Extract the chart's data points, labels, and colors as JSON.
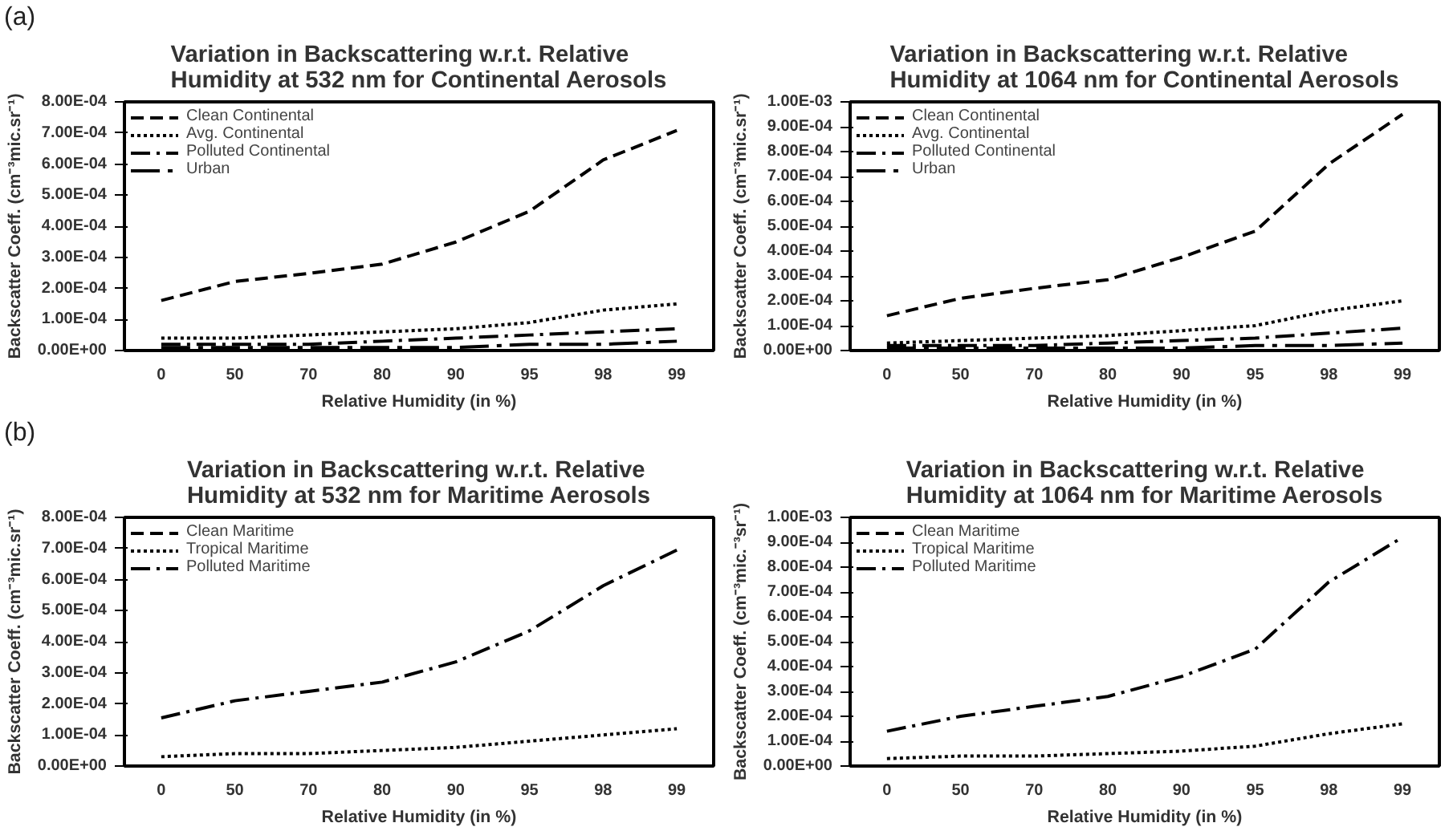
{
  "chart_data": [
    {
      "type": "line",
      "title": "Variation in Backscattering w.r.t. Relative\nHumidity at 532 nm for Continental Aerosols",
      "xlabel": "Relative Humidity (in %)",
      "ylabel": "Backscatter Coeff. (cm⁻³mic.sr⁻¹)",
      "annotations": [
        "(a)"
      ],
      "categories": [
        "0",
        "50",
        "70",
        "80",
        "90",
        "95",
        "98",
        "99"
      ],
      "series": [
        {
          "name": "Clean Continental",
          "color": "#000000",
          "line_style": "dashed",
          "values": [
            0.000161,
            0.000222,
            0.000248,
            0.000278,
            0.000349,
            0.000448,
            0.000613,
            0.000708
          ]
        },
        {
          "name": "Avg. Continental",
          "color": "#000000",
          "line_style": "dotted",
          "values": [
            4e-05,
            4e-05,
            5e-05,
            6e-05,
            7e-05,
            9e-05,
            0.00013,
            0.00015
          ]
        },
        {
          "name": "Polluted Continental",
          "color": "#000000",
          "line_style": "dashdot",
          "values": [
            2e-05,
            2e-05,
            2e-05,
            3e-05,
            4e-05,
            5e-05,
            6e-05,
            7e-05
          ]
        },
        {
          "name": "Urban",
          "color": "#000000",
          "line_style": "longdashdot",
          "values": [
            1e-05,
            1e-05,
            1e-05,
            1e-05,
            1e-05,
            2e-05,
            2e-05,
            3e-05
          ]
        }
      ],
      "ylim": [
        0,
        0.0008
      ],
      "yticks": [
        {
          "value": 0,
          "label": "0.00E+00"
        },
        {
          "value": 0.0001,
          "label": "1.00E-04"
        },
        {
          "value": 0.0002,
          "label": "2.00E-04"
        },
        {
          "value": 0.0003,
          "label": "3.00E-04"
        },
        {
          "value": 0.0004,
          "label": "4.00E-04"
        },
        {
          "value": 0.0005,
          "label": "5.00E-04"
        },
        {
          "value": 0.0006,
          "label": "6.00E-04"
        },
        {
          "value": 0.0007,
          "label": "7.00E-04"
        },
        {
          "value": 0.0008,
          "label": "8.00E-04"
        }
      ],
      "legend": "top left"
    },
    {
      "type": "line",
      "title": "Variation in Backscattering w.r.t. Relative\nHumidity at 1064 nm for Continental Aerosols",
      "xlabel": "Relative Humidity (in %)",
      "ylabel": "Backscatter Coeff. (cm⁻³mic.sr⁻¹)",
      "categories": [
        "0",
        "50",
        "70",
        "80",
        "90",
        "95",
        "98",
        "99"
      ],
      "series": [
        {
          "name": "Clean Continental",
          "color": "#000000",
          "line_style": "dashed",
          "values": [
            0.00014,
            0.00021,
            0.00025,
            0.000285,
            0.000375,
            0.00048,
            0.00075,
            0.00095
          ]
        },
        {
          "name": "Avg. Continental",
          "color": "#000000",
          "line_style": "dotted",
          "values": [
            3e-05,
            4e-05,
            5e-05,
            6e-05,
            8e-05,
            0.0001,
            0.00016,
            0.0002
          ]
        },
        {
          "name": "Polluted Continental",
          "color": "#000000",
          "line_style": "dashdot",
          "values": [
            2e-05,
            2e-05,
            2e-05,
            3e-05,
            4e-05,
            5e-05,
            7e-05,
            9e-05
          ]
        },
        {
          "name": "Urban",
          "color": "#000000",
          "line_style": "longdashdot",
          "values": [
            1e-05,
            1e-05,
            1e-05,
            1e-05,
            1e-05,
            2e-05,
            2e-05,
            3e-05
          ]
        }
      ],
      "ylim": [
        0,
        0.001
      ],
      "yticks": [
        {
          "value": 0,
          "label": "0.00E+00"
        },
        {
          "value": 0.0001,
          "label": "1.00E-04"
        },
        {
          "value": 0.0002,
          "label": "2.00E-04"
        },
        {
          "value": 0.0003,
          "label": "3.00E-04"
        },
        {
          "value": 0.0004,
          "label": "4.00E-04"
        },
        {
          "value": 0.0005,
          "label": "5.00E-04"
        },
        {
          "value": 0.0006,
          "label": "6.00E-04"
        },
        {
          "value": 0.0007,
          "label": "7.00E-04"
        },
        {
          "value": 0.0008,
          "label": "8.00E-04"
        },
        {
          "value": 0.0009,
          "label": "9.00E-04"
        },
        {
          "value": 0.001,
          "label": "1.00E-03"
        }
      ],
      "legend": "top left"
    },
    {
      "type": "line",
      "title": "Variation in Backscattering w.r.t. Relative\nHumidity at 532 nm for Maritime Aerosols",
      "xlabel": "Relative Humidity (in %)",
      "ylabel": "Backscatter Coeff. (cm⁻³mic.sr⁻¹)",
      "annotations": [
        "(b)"
      ],
      "categories": [
        "0",
        "50",
        "70",
        "80",
        "90",
        "95",
        "98",
        "99"
      ],
      "series": [
        {
          "name": "Clean Maritime",
          "color": "#000000",
          "line_style": "dashed",
          "values": [
            null,
            null,
            null,
            null,
            null,
            null,
            null,
            null
          ]
        },
        {
          "name": "Tropical Maritime",
          "color": "#000000",
          "line_style": "dotted",
          "values": [
            3e-05,
            4e-05,
            4e-05,
            5e-05,
            6e-05,
            8e-05,
            0.0001,
            0.00012
          ]
        },
        {
          "name": "Polluted Maritime",
          "color": "#000000",
          "line_style": "dashdot",
          "values": [
            0.000155,
            0.00021,
            0.00024,
            0.00027,
            0.000335,
            0.000435,
            0.00058,
            0.000695
          ]
        }
      ],
      "ylim": [
        0,
        0.0008
      ],
      "yticks": [
        {
          "value": 0,
          "label": "0.00E+00"
        },
        {
          "value": 0.0001,
          "label": "1.00E-04"
        },
        {
          "value": 0.0002,
          "label": "2.00E-04"
        },
        {
          "value": 0.0003,
          "label": "3.00E-04"
        },
        {
          "value": 0.0004,
          "label": "4.00E-04"
        },
        {
          "value": 0.0005,
          "label": "5.00E-04"
        },
        {
          "value": 0.0006,
          "label": "6.00E-04"
        },
        {
          "value": 0.0007,
          "label": "7.00E-04"
        },
        {
          "value": 0.0008,
          "label": "8.00E-04"
        }
      ],
      "legend": "top left"
    },
    {
      "type": "line",
      "title": "Variation in Backscattering w.r.t. Relative\nHumidity at 1064 nm for Maritime Aerosols",
      "xlabel": "Relative Humidity (in %)",
      "ylabel": "Backscatter Coeff. (cm⁻³mic.⁻³sr⁻¹)",
      "categories": [
        "0",
        "50",
        "70",
        "80",
        "90",
        "95",
        "98",
        "99"
      ],
      "series": [
        {
          "name": "Clean Maritime",
          "color": "#000000",
          "line_style": "dashed",
          "values": [
            null,
            null,
            null,
            null,
            null,
            null,
            null,
            null
          ]
        },
        {
          "name": "Tropical Maritime",
          "color": "#000000",
          "line_style": "dotted",
          "values": [
            3e-05,
            4e-05,
            4e-05,
            5e-05,
            6e-05,
            8e-05,
            0.00013,
            0.00017
          ]
        },
        {
          "name": "Polluted Maritime",
          "color": "#000000",
          "line_style": "dashdot",
          "values": [
            0.00014,
            0.0002,
            0.00024,
            0.00028,
            0.00036,
            0.00047,
            0.00074,
            0.00092
          ]
        }
      ],
      "ylim": [
        0,
        0.001
      ],
      "yticks": [
        {
          "value": 0,
          "label": "0.00E+00"
        },
        {
          "value": 0.0001,
          "label": "1.00E-04"
        },
        {
          "value": 0.0002,
          "label": "2.00E-04"
        },
        {
          "value": 0.0003,
          "label": "3.00E-04"
        },
        {
          "value": 0.0004,
          "label": "4.00E-04"
        },
        {
          "value": 0.0005,
          "label": "5.00E-04"
        },
        {
          "value": 0.0006,
          "label": "6.00E-04"
        },
        {
          "value": 0.0007,
          "label": "7.00E-04"
        },
        {
          "value": 0.0008,
          "label": "8.00E-04"
        },
        {
          "value": 0.0009,
          "label": "9.00E-04"
        },
        {
          "value": 0.001,
          "label": "1.00E-03"
        }
      ],
      "legend": "top left"
    }
  ]
}
